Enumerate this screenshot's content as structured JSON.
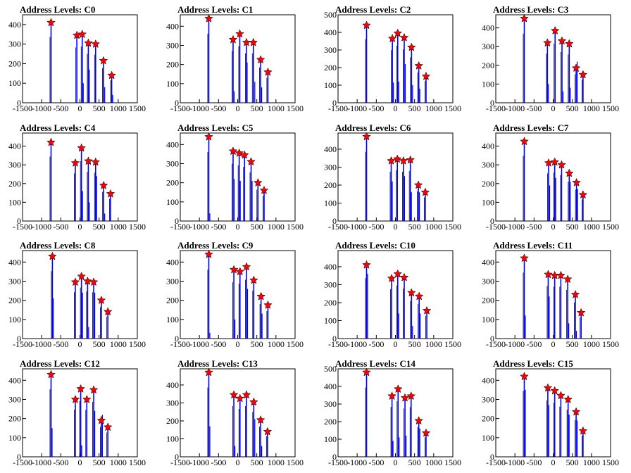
{
  "colors": {
    "histogram": "#0000ff",
    "marker": "#ff0000",
    "axis": "#000000"
  },
  "xaxis": {
    "range": [
      -1500,
      1500
    ],
    "ticks": [
      -1500,
      -1000,
      -500,
      0,
      500,
      1000,
      1500
    ]
  },
  "chart_data": [
    {
      "type": "bar",
      "title": "Address Levels: C0",
      "ylim": [
        0,
        450
      ],
      "yticks": [
        0,
        100,
        200,
        300,
        400
      ],
      "peaks": [
        {
          "x": -755,
          "y": 410
        },
        {
          "x": -80,
          "y": 345
        },
        {
          "x": 60,
          "y": 350
        },
        {
          "x": 220,
          "y": 305
        },
        {
          "x": 410,
          "y": 300
        },
        {
          "x": 615,
          "y": 215
        },
        {
          "x": 830,
          "y": 140
        }
      ],
      "minor": [
        {
          "x": 60,
          "y": 100
        },
        {
          "x": 220,
          "y": 170
        },
        {
          "x": 620,
          "y": 80
        },
        {
          "x": 830,
          "y": 40
        }
      ]
    },
    {
      "type": "bar",
      "title": "Address Levels: C1",
      "ylim": [
        0,
        460
      ],
      "yticks": [
        0,
        100,
        200,
        300,
        400
      ],
      "peaks": [
        {
          "x": -755,
          "y": 440
        },
        {
          "x": -120,
          "y": 330
        },
        {
          "x": 55,
          "y": 360
        },
        {
          "x": 230,
          "y": 315
        },
        {
          "x": 410,
          "y": 315
        },
        {
          "x": 600,
          "y": 225
        },
        {
          "x": 790,
          "y": 160
        }
      ],
      "minor": [
        {
          "x": -120,
          "y": 60
        },
        {
          "x": 220,
          "y": 210
        },
        {
          "x": 420,
          "y": 110
        },
        {
          "x": 600,
          "y": 80
        }
      ]
    },
    {
      "type": "bar",
      "title": "Address Levels: C2",
      "ylim": [
        0,
        500
      ],
      "yticks": [
        0,
        100,
        200,
        300,
        400,
        500
      ],
      "peaks": [
        {
          "x": -755,
          "y": 440
        },
        {
          "x": -80,
          "y": 365
        },
        {
          "x": 60,
          "y": 395
        },
        {
          "x": 230,
          "y": 370
        },
        {
          "x": 420,
          "y": 315
        },
        {
          "x": 610,
          "y": 210
        },
        {
          "x": 800,
          "y": 150
        }
      ],
      "minor": [
        {
          "x": -80,
          "y": 115
        },
        {
          "x": 60,
          "y": 120
        },
        {
          "x": 230,
          "y": 220
        },
        {
          "x": 420,
          "y": 100
        },
        {
          "x": 610,
          "y": 80
        }
      ]
    },
    {
      "type": "bar",
      "title": "Address Levels: C3",
      "ylim": [
        0,
        470
      ],
      "yticks": [
        0,
        100,
        200,
        300,
        400
      ],
      "peaks": [
        {
          "x": -755,
          "y": 450
        },
        {
          "x": -150,
          "y": 320
        },
        {
          "x": 50,
          "y": 385
        },
        {
          "x": 230,
          "y": 330
        },
        {
          "x": 420,
          "y": 315
        },
        {
          "x": 600,
          "y": 185
        },
        {
          "x": 780,
          "y": 150
        }
      ],
      "minor": [
        {
          "x": -150,
          "y": 100
        },
        {
          "x": 230,
          "y": 60
        },
        {
          "x": 420,
          "y": 80
        },
        {
          "x": 600,
          "y": 220
        }
      ]
    },
    {
      "type": "bar",
      "title": "Address Levels: C4",
      "ylim": [
        0,
        470
      ],
      "yticks": [
        0,
        100,
        200,
        300,
        400
      ],
      "peaks": [
        {
          "x": -755,
          "y": 420
        },
        {
          "x": -120,
          "y": 310
        },
        {
          "x": 40,
          "y": 390
        },
        {
          "x": 220,
          "y": 320
        },
        {
          "x": 410,
          "y": 315
        },
        {
          "x": 620,
          "y": 190
        },
        {
          "x": 800,
          "y": 145
        }
      ],
      "minor": [
        {
          "x": 40,
          "y": 160
        },
        {
          "x": 220,
          "y": 100
        },
        {
          "x": 410,
          "y": 240
        },
        {
          "x": 620,
          "y": 40
        }
      ]
    },
    {
      "type": "bar",
      "title": "Address Levels: C5",
      "ylim": [
        0,
        460
      ],
      "yticks": [
        0,
        100,
        200,
        300,
        400
      ],
      "peaks": [
        {
          "x": -755,
          "y": 440
        },
        {
          "x": -120,
          "y": 365
        },
        {
          "x": 40,
          "y": 355
        },
        {
          "x": 180,
          "y": 345
        },
        {
          "x": 350,
          "y": 310
        },
        {
          "x": 530,
          "y": 200
        },
        {
          "x": 690,
          "y": 160
        }
      ],
      "minor": [
        {
          "x": -755,
          "y": 40
        },
        {
          "x": -120,
          "y": 220
        },
        {
          "x": 40,
          "y": 210
        },
        {
          "x": 350,
          "y": 210
        }
      ]
    },
    {
      "type": "bar",
      "title": "Address Levels: C6",
      "ylim": [
        0,
        490
      ],
      "yticks": [
        0,
        100,
        200,
        300,
        400
      ],
      "peaks": [
        {
          "x": -755,
          "y": 470
        },
        {
          "x": -110,
          "y": 335
        },
        {
          "x": 50,
          "y": 345
        },
        {
          "x": 210,
          "y": 335
        },
        {
          "x": 390,
          "y": 340
        },
        {
          "x": 600,
          "y": 200
        },
        {
          "x": 780,
          "y": 160
        }
      ],
      "minor": [
        {
          "x": -110,
          "y": 220
        },
        {
          "x": 210,
          "y": 250
        },
        {
          "x": 390,
          "y": 160
        },
        {
          "x": 600,
          "y": 160
        }
      ]
    },
    {
      "type": "bar",
      "title": "Address Levels: C7",
      "ylim": [
        0,
        470
      ],
      "yticks": [
        0,
        100,
        200,
        300,
        400
      ],
      "peaks": [
        {
          "x": -755,
          "y": 425
        },
        {
          "x": -120,
          "y": 310
        },
        {
          "x": 40,
          "y": 315
        },
        {
          "x": 220,
          "y": 300
        },
        {
          "x": 420,
          "y": 255
        },
        {
          "x": 610,
          "y": 205
        },
        {
          "x": 780,
          "y": 140
        }
      ],
      "minor": [
        {
          "x": -120,
          "y": 190
        },
        {
          "x": 40,
          "y": 230
        },
        {
          "x": 420,
          "y": 210
        },
        {
          "x": 610,
          "y": 170
        }
      ]
    },
    {
      "type": "bar",
      "title": "Address Levels: C8",
      "ylim": [
        0,
        460
      ],
      "yticks": [
        0,
        100,
        200,
        300,
        400
      ],
      "peaks": [
        {
          "x": -720,
          "y": 430
        },
        {
          "x": -120,
          "y": 295
        },
        {
          "x": 40,
          "y": 325
        },
        {
          "x": 200,
          "y": 300
        },
        {
          "x": 360,
          "y": 295
        },
        {
          "x": 560,
          "y": 200
        },
        {
          "x": 730,
          "y": 140
        }
      ],
      "minor": [
        {
          "x": -720,
          "y": 210
        },
        {
          "x": 40,
          "y": 240
        },
        {
          "x": 200,
          "y": 60
        },
        {
          "x": 360,
          "y": 240
        }
      ]
    },
    {
      "type": "bar",
      "title": "Address Levels: C9",
      "ylim": [
        0,
        460
      ],
      "yticks": [
        0,
        100,
        200,
        300,
        400
      ],
      "peaks": [
        {
          "x": -755,
          "y": 440
        },
        {
          "x": -100,
          "y": 360
        },
        {
          "x": 60,
          "y": 350
        },
        {
          "x": 230,
          "y": 375
        },
        {
          "x": 420,
          "y": 305
        },
        {
          "x": 610,
          "y": 220
        },
        {
          "x": 790,
          "y": 175
        }
      ],
      "minor": [
        {
          "x": -755,
          "y": 30
        },
        {
          "x": -100,
          "y": 100
        },
        {
          "x": 230,
          "y": 260
        },
        {
          "x": 610,
          "y": 130
        }
      ]
    },
    {
      "type": "bar",
      "title": "Address Levels: C10",
      "ylim": [
        0,
        490
      ],
      "yticks": [
        0,
        100,
        200,
        300,
        400
      ],
      "peaks": [
        {
          "x": -755,
          "y": 410
        },
        {
          "x": -100,
          "y": 335
        },
        {
          "x": 60,
          "y": 360
        },
        {
          "x": 230,
          "y": 340
        },
        {
          "x": 420,
          "y": 255
        },
        {
          "x": 620,
          "y": 235
        },
        {
          "x": 820,
          "y": 155
        }
      ],
      "minor": [
        {
          "x": -755,
          "y": 360
        },
        {
          "x": 60,
          "y": 140
        },
        {
          "x": 420,
          "y": 70
        },
        {
          "x": 620,
          "y": 140
        }
      ]
    },
    {
      "type": "bar",
      "title": "Address Levels: C11",
      "ylim": [
        0,
        460
      ],
      "yticks": [
        0,
        100,
        200,
        300,
        400
      ],
      "peaks": [
        {
          "x": -755,
          "y": 420
        },
        {
          "x": -130,
          "y": 335
        },
        {
          "x": 40,
          "y": 330
        },
        {
          "x": 200,
          "y": 330
        },
        {
          "x": 380,
          "y": 310
        },
        {
          "x": 580,
          "y": 230
        },
        {
          "x": 730,
          "y": 135
        }
      ],
      "minor": [
        {
          "x": -755,
          "y": 120
        },
        {
          "x": -130,
          "y": 220
        },
        {
          "x": 380,
          "y": 80
        },
        {
          "x": 580,
          "y": 40
        }
      ]
    },
    {
      "type": "bar",
      "title": "Address Levels: C12",
      "ylim": [
        0,
        460
      ],
      "yticks": [
        0,
        100,
        200,
        300,
        400
      ],
      "peaks": [
        {
          "x": -755,
          "y": 430
        },
        {
          "x": -120,
          "y": 300
        },
        {
          "x": 20,
          "y": 355
        },
        {
          "x": 180,
          "y": 300
        },
        {
          "x": 360,
          "y": 350
        },
        {
          "x": 560,
          "y": 190
        },
        {
          "x": 730,
          "y": 155
        }
      ],
      "minor": [
        {
          "x": -755,
          "y": 150
        },
        {
          "x": 20,
          "y": 60
        },
        {
          "x": 360,
          "y": 240
        },
        {
          "x": 560,
          "y": 220
        }
      ]
    },
    {
      "type": "bar",
      "title": "Address Levels: C13",
      "ylim": [
        0,
        490
      ],
      "yticks": [
        0,
        100,
        200,
        300,
        400
      ],
      "peaks": [
        {
          "x": -755,
          "y": 470
        },
        {
          "x": -100,
          "y": 345
        },
        {
          "x": 60,
          "y": 325
        },
        {
          "x": 230,
          "y": 345
        },
        {
          "x": 420,
          "y": 305
        },
        {
          "x": 600,
          "y": 205
        },
        {
          "x": 780,
          "y": 140
        }
      ],
      "minor": [
        {
          "x": -755,
          "y": 170
        },
        {
          "x": -100,
          "y": 60
        },
        {
          "x": 420,
          "y": 210
        },
        {
          "x": 600,
          "y": 60
        }
      ]
    },
    {
      "type": "bar",
      "title": "Address Levels: C14",
      "ylim": [
        0,
        500
      ],
      "yticks": [
        0,
        100,
        200,
        300,
        400,
        500
      ],
      "peaks": [
        {
          "x": -755,
          "y": 480
        },
        {
          "x": -90,
          "y": 345
        },
        {
          "x": 70,
          "y": 385
        },
        {
          "x": 250,
          "y": 335
        },
        {
          "x": 410,
          "y": 345
        },
        {
          "x": 610,
          "y": 205
        },
        {
          "x": 800,
          "y": 135
        }
      ],
      "minor": [
        {
          "x": -90,
          "y": 90
        },
        {
          "x": 70,
          "y": 110
        },
        {
          "x": 250,
          "y": 120
        },
        {
          "x": 610,
          "y": 160
        }
      ]
    },
    {
      "type": "bar",
      "title": "Address Levels: C15",
      "ylim": [
        0,
        460
      ],
      "yticks": [
        0,
        100,
        200,
        300,
        400
      ],
      "peaks": [
        {
          "x": -755,
          "y": 420
        },
        {
          "x": -140,
          "y": 360
        },
        {
          "x": 40,
          "y": 345
        },
        {
          "x": 200,
          "y": 320
        },
        {
          "x": 390,
          "y": 300
        },
        {
          "x": 600,
          "y": 235
        },
        {
          "x": 780,
          "y": 135
        }
      ],
      "minor": [
        {
          "x": -755,
          "y": 350
        },
        {
          "x": -140,
          "y": 270
        },
        {
          "x": 390,
          "y": 220
        },
        {
          "x": 600,
          "y": 190
        }
      ]
    }
  ]
}
